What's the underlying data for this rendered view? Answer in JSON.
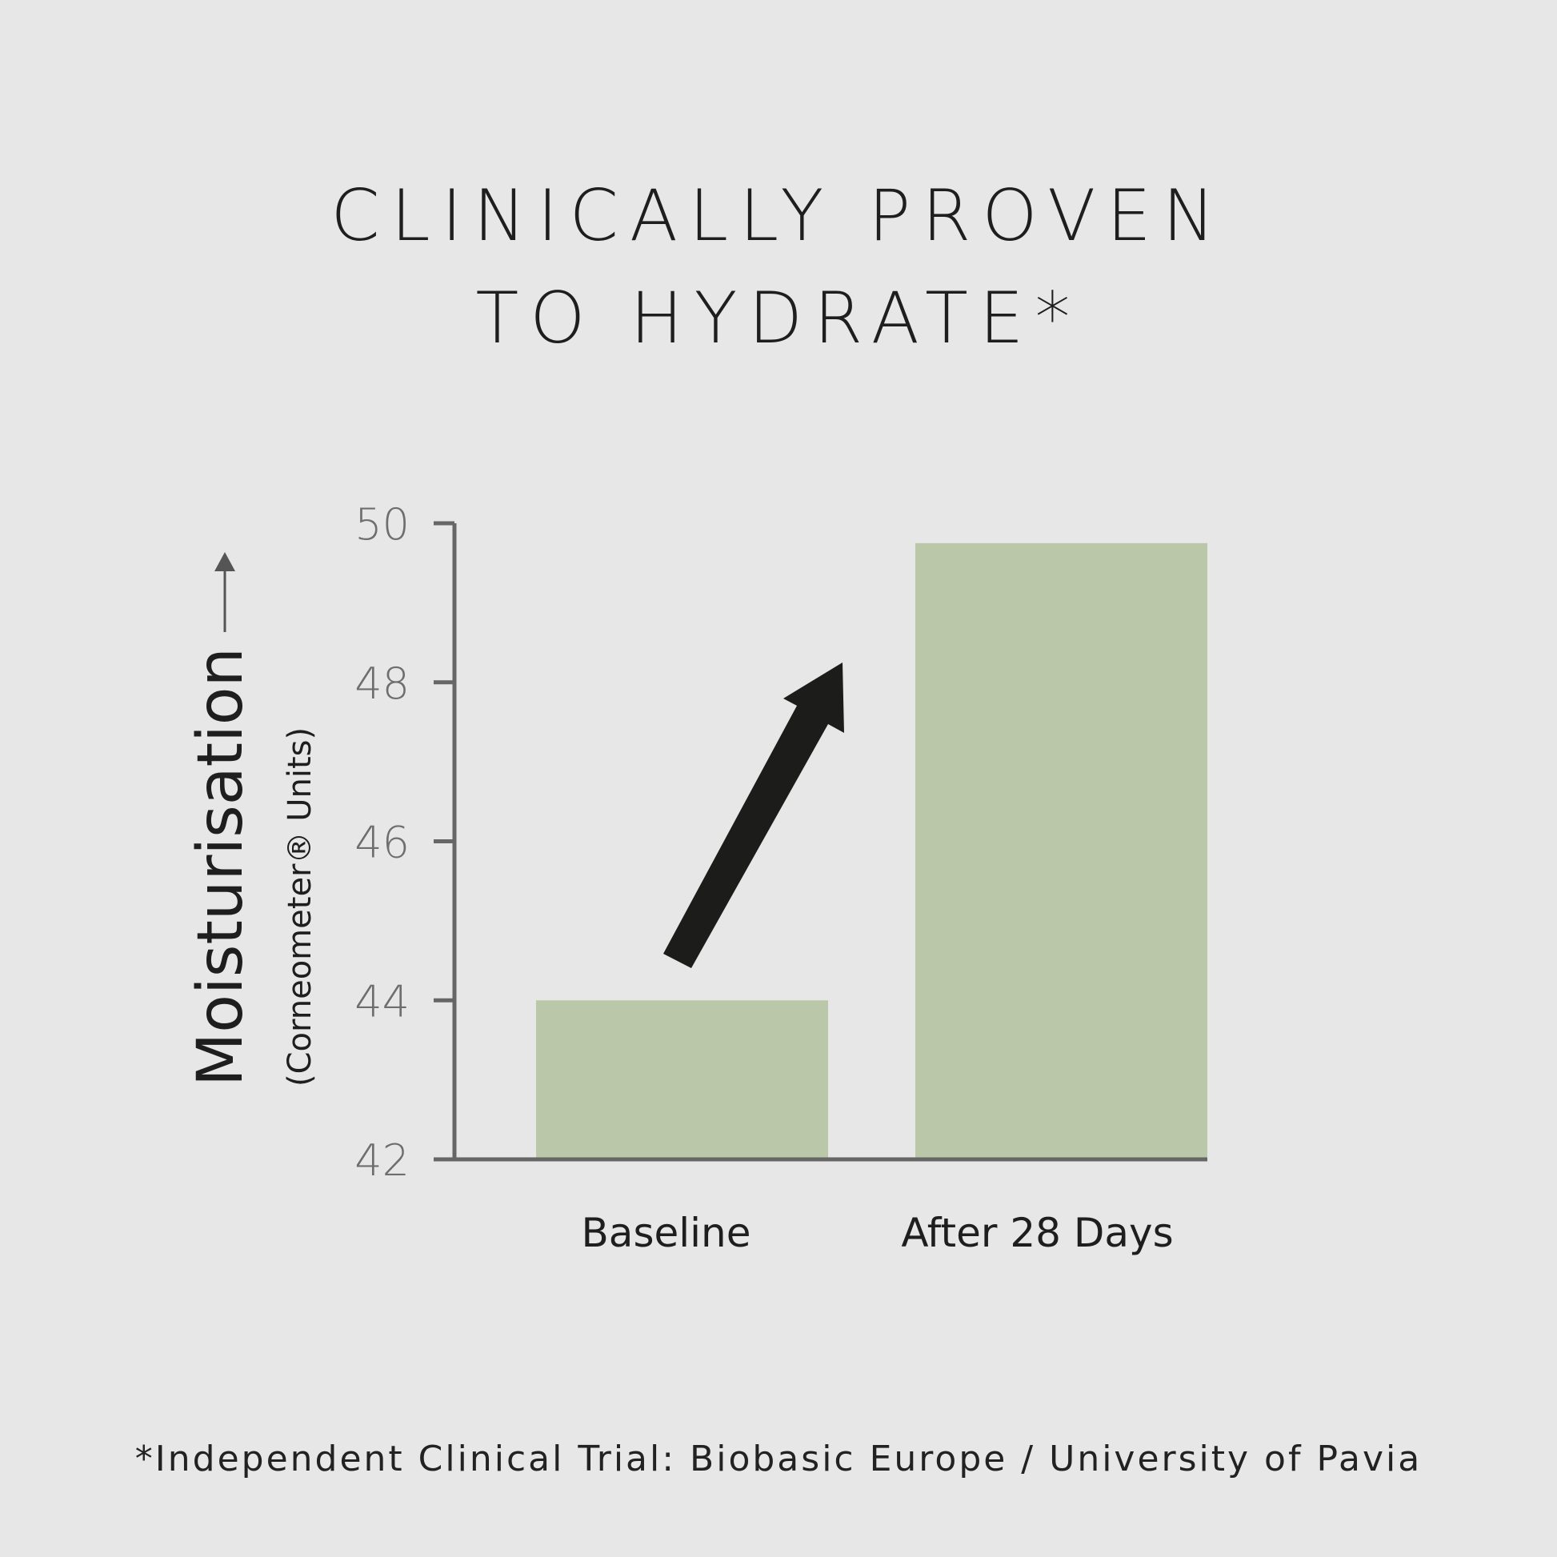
{
  "header": {
    "title_line1": "CLINICALLY PROVEN",
    "title_line2": "TO HYDRATE*"
  },
  "footnote": "*Independent Clinical Trial: Biobasic Europe / University of Pavia",
  "colors": {
    "background": "#e7e7e7",
    "bar": "#bac8a9",
    "axis": "#666666",
    "arrow": "#1c1c1a"
  },
  "chart_data": {
    "type": "bar",
    "categories": [
      "Baseline",
      "After 28 Days"
    ],
    "values": [
      44,
      49.75
    ],
    "ylabel": "Moisturisation",
    "ylabel_sub": "(Corneometer® Units)",
    "ylim": [
      42,
      50
    ],
    "yticks": [
      "42",
      "44",
      "46",
      "48",
      "50"
    ],
    "grid": false,
    "annotation": "up-arrow-icon"
  }
}
